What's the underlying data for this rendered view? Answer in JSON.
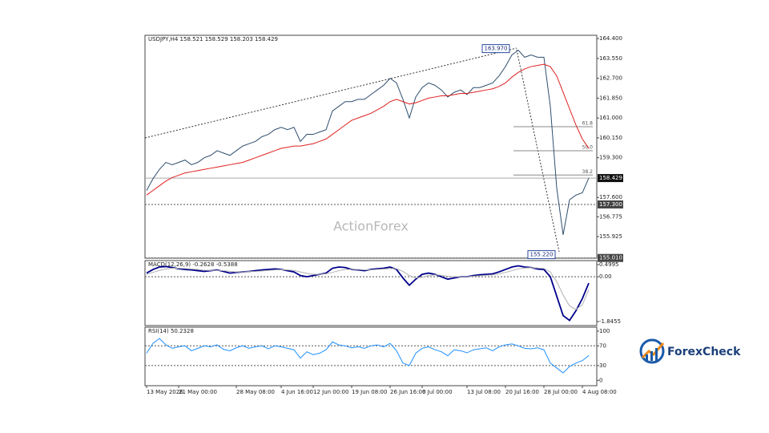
{
  "chart_data": [
    {
      "type": "line",
      "title": "USDJPY,H4  158.521 158.529 158.203 158.429",
      "categories": [
        "13 May 2026",
        null,
        null,
        null,
        null,
        "21 May 00:00",
        null,
        null,
        null,
        null,
        null,
        null,
        null,
        null,
        "28 May 08:00",
        null,
        null,
        null,
        null,
        null,
        null,
        "4 Jun 16:00",
        null,
        null,
        null,
        null,
        "12 Jun 00:00",
        null,
        null,
        null,
        null,
        null,
        "19 Jun 08:00",
        null,
        null,
        null,
        null,
        null,
        "26 Jun 16:00",
        null,
        null,
        null,
        null,
        "6 Jul 00:00",
        null,
        null,
        null,
        null,
        null,
        null,
        "13 Jul 08:00",
        null,
        null,
        null,
        null,
        null,
        "20 Jul 16:00",
        null,
        null,
        null,
        null,
        null,
        "28 Jul 00:00",
        null,
        null,
        null,
        null,
        null,
        "4 Aug 08:00",
        null
      ],
      "series": [
        {
          "name": "USDJPY",
          "color": "#2f4f6f",
          "values": [
            157.9,
            158.4,
            158.8,
            159.1,
            159.0,
            159.1,
            159.2,
            159.0,
            159.1,
            159.3,
            159.4,
            159.6,
            159.5,
            159.4,
            159.6,
            159.8,
            159.9,
            160.0,
            160.2,
            160.3,
            160.5,
            160.6,
            160.5,
            160.6,
            160.0,
            160.3,
            160.3,
            160.4,
            160.5,
            161.3,
            161.5,
            161.7,
            161.7,
            161.8,
            161.8,
            162.0,
            162.2,
            162.4,
            162.7,
            162.5,
            161.8,
            161.0,
            161.9,
            162.3,
            162.5,
            162.4,
            162.2,
            161.9,
            162.1,
            162.2,
            162.0,
            162.3,
            162.3,
            162.4,
            162.5,
            162.8,
            163.2,
            163.7,
            163.9,
            163.6,
            163.7,
            163.6,
            163.6,
            161.5,
            158.0,
            156.0,
            157.5,
            157.7,
            157.8,
            158.429
          ]
        },
        {
          "name": "MA",
          "color": "#e02020",
          "values": [
            157.7,
            157.9,
            158.1,
            158.3,
            158.45,
            158.55,
            158.65,
            158.7,
            158.75,
            158.8,
            158.85,
            158.9,
            158.95,
            159.0,
            159.05,
            159.1,
            159.2,
            159.3,
            159.4,
            159.5,
            159.6,
            159.7,
            159.75,
            159.8,
            159.8,
            159.85,
            159.9,
            160.0,
            160.1,
            160.3,
            160.5,
            160.7,
            160.9,
            161.0,
            161.1,
            161.2,
            161.35,
            161.5,
            161.7,
            161.8,
            161.7,
            161.6,
            161.65,
            161.75,
            161.85,
            161.9,
            161.95,
            161.95,
            162.0,
            162.05,
            162.05,
            162.1,
            162.15,
            162.2,
            162.25,
            162.35,
            162.5,
            162.75,
            162.95,
            163.1,
            163.2,
            163.25,
            163.3,
            163.2,
            162.8,
            162.1,
            161.4,
            160.7,
            160.1,
            159.7
          ]
        }
      ],
      "ylim": [
        155.0,
        164.54
      ],
      "yticks": [
        {
          "value": 164.4,
          "label": "164.400"
        },
        {
          "value": 163.55,
          "label": "163.550"
        },
        {
          "value": 162.7,
          "label": "162.700"
        },
        {
          "value": 161.85,
          "label": "161.850"
        },
        {
          "value": 161.0,
          "label": "161.000"
        },
        {
          "value": 160.15,
          "label": "160.150"
        },
        {
          "value": 159.3,
          "label": "159.300"
        },
        {
          "value": 157.6,
          "label": "157.600"
        },
        {
          "value": 156.775,
          "label": "156.775"
        },
        {
          "value": 155.925,
          "label": "155.925"
        }
      ],
      "levels": [
        {
          "value": 158.429,
          "label": "158.429"
        },
        {
          "value": 157.3,
          "label": "157.300"
        },
        {
          "value": 155.01,
          "label": "155.010"
        }
      ],
      "fib_levels": [
        {
          "value": 160.63,
          "label": "61.8"
        },
        {
          "value": 159.6,
          "label": "50.0"
        },
        {
          "value": 158.56,
          "label": "38.2"
        }
      ],
      "extremes": [
        {
          "value": 163.97,
          "label": "163.970"
        },
        {
          "value": 155.22,
          "label": "155.220"
        }
      ],
      "watermark": "ActionForex"
    },
    {
      "type": "line",
      "title": "MACD(12,26,9) -0.2628 -0.5388",
      "series": [
        {
          "name": "MACD",
          "color": "#00008b",
          "values": [
            0.15,
            0.3,
            0.4,
            0.42,
            0.38,
            0.33,
            0.3,
            0.28,
            0.25,
            0.22,
            0.25,
            0.28,
            0.22,
            0.15,
            0.18,
            0.2,
            0.22,
            0.25,
            0.28,
            0.3,
            0.32,
            0.3,
            0.25,
            0.2,
            0.05,
            0.0,
            0.05,
            0.1,
            0.15,
            0.35,
            0.4,
            0.38,
            0.3,
            0.28,
            0.25,
            0.3,
            0.33,
            0.35,
            0.4,
            0.3,
            -0.05,
            -0.35,
            -0.1,
            0.1,
            0.15,
            0.1,
            0.0,
            -0.1,
            -0.05,
            0.0,
            0.0,
            0.05,
            0.08,
            0.1,
            0.12,
            0.2,
            0.3,
            0.4,
            0.45,
            0.4,
            0.38,
            0.32,
            0.3,
            0.0,
            -0.8,
            -1.6,
            -1.8,
            -1.4,
            -0.9,
            -0.2628
          ]
        },
        {
          "name": "Signal",
          "color": "#b0b0b0",
          "values": [
            0.1,
            0.18,
            0.26,
            0.32,
            0.35,
            0.35,
            0.34,
            0.32,
            0.3,
            0.27,
            0.26,
            0.26,
            0.25,
            0.22,
            0.2,
            0.2,
            0.21,
            0.22,
            0.24,
            0.26,
            0.28,
            0.29,
            0.28,
            0.26,
            0.2,
            0.14,
            0.1,
            0.1,
            0.12,
            0.18,
            0.25,
            0.3,
            0.3,
            0.3,
            0.28,
            0.28,
            0.3,
            0.32,
            0.34,
            0.33,
            0.22,
            0.05,
            -0.05,
            -0.02,
            0.05,
            0.08,
            0.06,
            0.02,
            0.0,
            0.0,
            0.0,
            0.02,
            0.04,
            0.06,
            0.08,
            0.12,
            0.18,
            0.25,
            0.32,
            0.36,
            0.37,
            0.36,
            0.34,
            0.2,
            -0.2,
            -0.75,
            -1.2,
            -1.35,
            -1.15,
            -0.5388
          ]
        }
      ],
      "ylim": [
        -2.011,
        0.665
      ],
      "yticks": [
        0.4995,
        {
          "value": 0,
          "label": "0.00"
        },
        -1.8455
      ],
      "levels": [
        0
      ]
    },
    {
      "type": "line",
      "title": "RSI(14) 50.2328",
      "series": [
        {
          "name": "RSI",
          "color": "#1e90ff",
          "values": [
            55,
            75,
            85,
            72,
            65,
            68,
            70,
            60,
            65,
            70,
            68,
            72,
            63,
            60,
            66,
            70,
            65,
            68,
            70,
            64,
            70,
            68,
            65,
            62,
            45,
            58,
            52,
            55,
            62,
            78,
            72,
            70,
            66,
            68,
            65,
            70,
            72,
            68,
            75,
            60,
            35,
            30,
            55,
            65,
            68,
            62,
            58,
            50,
            62,
            60,
            56,
            62,
            64,
            66,
            60,
            68,
            72,
            74,
            70,
            65,
            64,
            66,
            62,
            35,
            25,
            15,
            28,
            35,
            40,
            50.2328
          ]
        }
      ],
      "ylim": [
        -11,
        108
      ],
      "yticks": [
        100,
        70,
        30,
        0
      ],
      "levels": [
        70,
        30
      ]
    }
  ],
  "logo": "ForexCheck"
}
